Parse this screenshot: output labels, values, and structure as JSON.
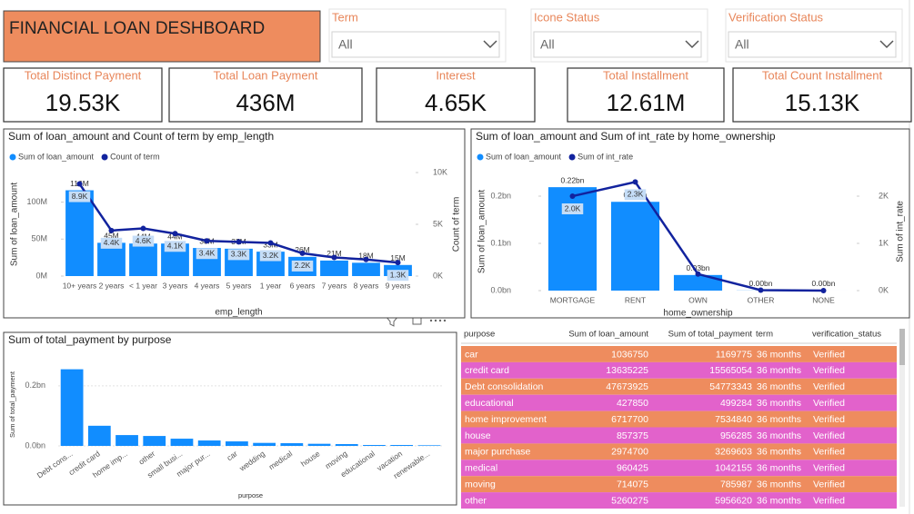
{
  "header": {
    "title": "FINANCIAL LOAN DESHBOARD"
  },
  "slicers": [
    {
      "label": "Term",
      "value": "All"
    },
    {
      "label": "Icone Status",
      "value": "All"
    },
    {
      "label": "Verification Status",
      "value": "All"
    }
  ],
  "kpis": [
    {
      "label": "Total Distinct Payment",
      "value": "19.53K"
    },
    {
      "label": "Total Loan Payment",
      "value": "436M"
    },
    {
      "label": "Interest",
      "value": "4.65K"
    },
    {
      "label": "Total Installment",
      "value": "12.61M"
    },
    {
      "label": "Total Count Installment",
      "value": "15.13K"
    }
  ],
  "chart_data": [
    {
      "type": "combo",
      "title": "Sum of loan_amount and Count of term by emp_length",
      "categories": [
        "10+ years",
        "2 years",
        "< 1 year",
        "3 years",
        "4 years",
        "5 years",
        "1 year",
        "6 years",
        "7 years",
        "8 years",
        "9 years"
      ],
      "series": [
        {
          "name": "Sum of loan_amount",
          "color": "#118DFF",
          "values": [
            116000000,
            45000000,
            44000000,
            44000000,
            38000000,
            37000000,
            33000000,
            26000000,
            21000000,
            18000000,
            15000000
          ],
          "value_labels": [
            "116M",
            "45M",
            "44M",
            "44M",
            "38M",
            "37M",
            "33M",
            "26M",
            "21M",
            "18M",
            "15M"
          ]
        },
        {
          "name": "Count of term",
          "color": "#12239E",
          "axis": "y2",
          "values": [
            8900,
            4400,
            4600,
            4100,
            3400,
            3300,
            3200,
            2200,
            1800,
            1600,
            1300
          ],
          "value_labels": [
            "8.9K",
            "4.4K",
            "4.6K",
            "4.1K",
            "3.4K",
            "3.3K",
            "3.2K",
            "2.2K",
            null,
            null,
            "1.3K"
          ]
        }
      ],
      "ylim": [
        0,
        140000000
      ],
      "yticks": [
        {
          "value": 0,
          "label": "0M"
        },
        {
          "value": 50000000,
          "label": "50M"
        },
        {
          "value": 100000000,
          "label": "100M"
        }
      ],
      "y2lim": [
        0,
        10000
      ],
      "y2ticks": [
        {
          "value": 0,
          "label": "0K"
        },
        {
          "value": 5000,
          "label": "5K"
        },
        {
          "value": 10000,
          "label": "10K"
        }
      ],
      "x_label": "emp_length",
      "y_label": "Sum of loan_amount",
      "y2_label": "Count of term",
      "grid": false
    },
    {
      "type": "combo",
      "title": "Sum of loan_amount and Sum of int_rate by home_ownership",
      "categories": [
        "MORTGAGE",
        "RENT",
        "OWN",
        "OTHER",
        "NONE"
      ],
      "series": [
        {
          "name": "Sum of loan_amount",
          "color": "#118DFF",
          "values": [
            219000000,
            188000000,
            33000000,
            300000,
            20000
          ],
          "value_labels": [
            "0.22bn",
            "0.19bn",
            "0.03bn",
            "0.00bn",
            "0.00bn"
          ]
        },
        {
          "name": "Sum of int_rate",
          "color": "#12239E",
          "axis": "y2",
          "values": [
            2000,
            2300,
            350,
            10,
            0
          ],
          "value_labels": [
            "2.0K",
            "2.3K",
            null,
            null,
            null
          ]
        }
      ],
      "ylim": [
        0,
        250000000
      ],
      "yticks": [
        {
          "value": 0,
          "label": "0.0bn"
        },
        {
          "value": 100000000,
          "label": "0.1bn"
        },
        {
          "value": 200000000,
          "label": "0.2bn"
        }
      ],
      "y2lim": [
        0,
        2500
      ],
      "y2ticks": [
        {
          "value": 0,
          "label": "0K"
        },
        {
          "value": 1000,
          "label": "1K"
        },
        {
          "value": 2000,
          "label": "2K"
        }
      ],
      "x_label": "home_ownership",
      "y_label": "Sum of loan_amount",
      "y2_label": "Sum of int_rate",
      "grid": false
    },
    {
      "type": "bar",
      "title": "Sum of total_payment by purpose",
      "categories": [
        "Debt cons...",
        "credit card",
        "home imp...",
        "other",
        "small busi...",
        "major pur...",
        "car",
        "wedding",
        "medical",
        "house",
        "moving",
        "educational",
        "vacation",
        "renewable..."
      ],
      "values": [
        255000000,
        67000000,
        36000000,
        33000000,
        24000000,
        18000000,
        15000000,
        10000000,
        9000000,
        7000000,
        6000000,
        3000000,
        3000000,
        2000000
      ],
      "color": "#118DFF",
      "ylim": [
        0,
        275000000
      ],
      "yticks": [
        {
          "value": 0,
          "label": "0.0bn"
        },
        {
          "value": 200000000,
          "label": "0.2bn"
        }
      ],
      "x_label": "purpose",
      "y_label": "Sum of total_payment",
      "grid": true
    }
  ],
  "table": {
    "columns": [
      "purpose",
      "Sum of loan_amount",
      "Sum of total_payment",
      "term",
      "verification_status"
    ],
    "rows": [
      [
        "car",
        1036750,
        1169775,
        "36 months",
        "Verified"
      ],
      [
        "credit card",
        13635225,
        15565054,
        "36 months",
        "Verified"
      ],
      [
        "Debt consolidation",
        47673925,
        54773343,
        "36 months",
        "Verified"
      ],
      [
        "educational",
        427850,
        499284,
        "36 months",
        "Verified"
      ],
      [
        "home improvement",
        6717700,
        7534840,
        "36 months",
        "Verified"
      ],
      [
        "house",
        857375,
        956285,
        "36 months",
        "Verified"
      ],
      [
        "major purchase",
        2974700,
        3269603,
        "36 months",
        "Verified"
      ],
      [
        "medical",
        960425,
        1042155,
        "36 months",
        "Verified"
      ],
      [
        "moving",
        714075,
        785987,
        "36 months",
        "Verified"
      ],
      [
        "other",
        5260275,
        5956620,
        "36 months",
        "Verified"
      ]
    ]
  }
}
